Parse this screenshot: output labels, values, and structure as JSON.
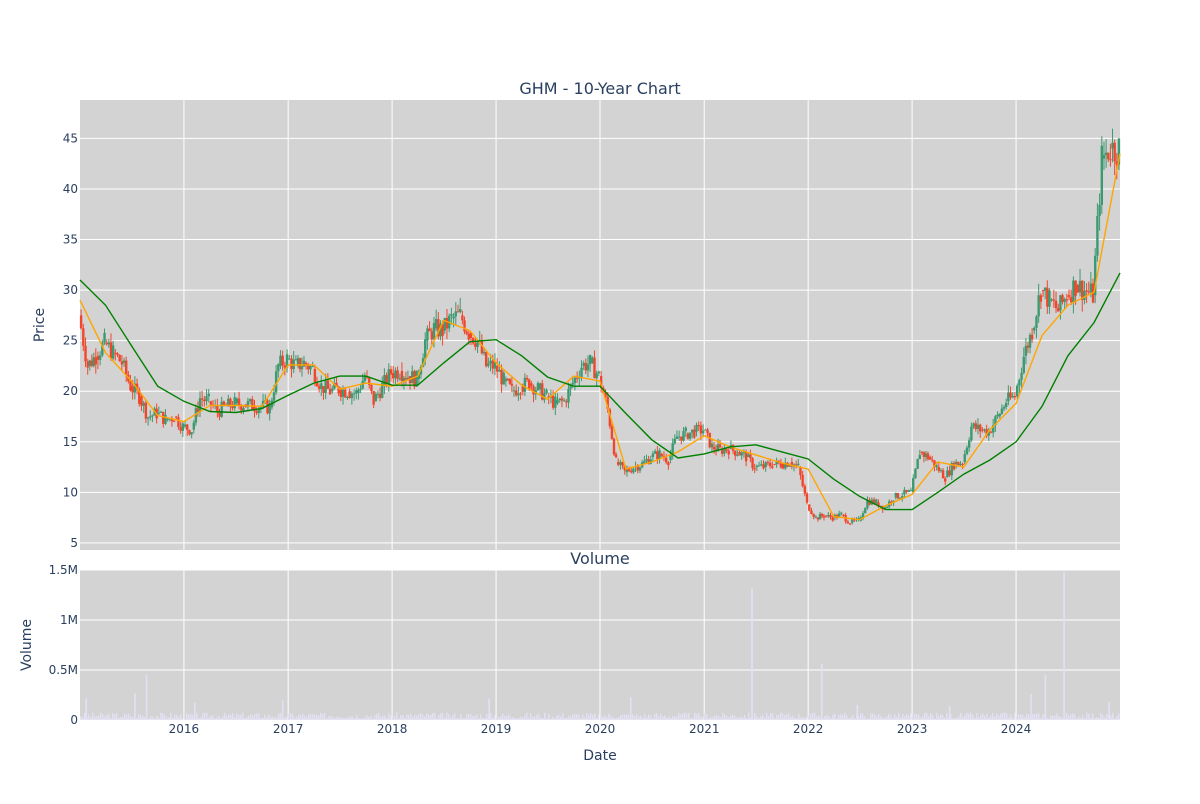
{
  "chart_data": [
    {
      "type": "candlestick",
      "title": "GHM - 10-Year Chart",
      "ylabel": "Price",
      "ylim": [
        4.3,
        48.8
      ],
      "yticks": [
        5,
        10,
        15,
        20,
        25,
        30,
        35,
        40,
        45
      ],
      "grid": true,
      "legend": "none",
      "colors": {
        "up": "#3d9970",
        "down": "#f1462c",
        "ma_short": "#ffa500",
        "ma_long": "#008000",
        "background": "#d3d3d3",
        "grid": "#ffffff"
      },
      "series": [
        {
          "kind": "ohlc-close-trace",
          "x": [
            "2015-01-01",
            "2015-02-01",
            "2015-03-01",
            "2015-04-01",
            "2015-05-01",
            "2015-06-01",
            "2015-07-01",
            "2015-08-01",
            "2015-09-01",
            "2015-10-01",
            "2015-11-01",
            "2015-12-01",
            "2016-01-01",
            "2016-02-01",
            "2016-03-01",
            "2016-04-01",
            "2016-05-01",
            "2016-06-01",
            "2016-07-01",
            "2016-08-01",
            "2016-09-01",
            "2016-10-01",
            "2016-11-01",
            "2016-12-01",
            "2017-01-01",
            "2017-02-01",
            "2017-03-01",
            "2017-04-01",
            "2017-05-01",
            "2017-06-01",
            "2017-07-01",
            "2017-08-01",
            "2017-09-01",
            "2017-10-01",
            "2017-11-01",
            "2017-12-01",
            "2018-01-01",
            "2018-02-01",
            "2018-03-01",
            "2018-04-01",
            "2018-05-01",
            "2018-06-01",
            "2018-07-01",
            "2018-08-01",
            "2018-09-01",
            "2018-10-01",
            "2018-11-01",
            "2018-12-01",
            "2019-01-01",
            "2019-02-01",
            "2019-03-01",
            "2019-04-01",
            "2019-05-01",
            "2019-06-01",
            "2019-07-01",
            "2019-08-01",
            "2019-09-01",
            "2019-10-01",
            "2019-11-01",
            "2019-12-01",
            "2020-01-01",
            "2020-02-01",
            "2020-03-01",
            "2020-04-01",
            "2020-05-01",
            "2020-06-01",
            "2020-07-01",
            "2020-08-01",
            "2020-09-01",
            "2020-10-01",
            "2020-11-01",
            "2020-12-01",
            "2021-01-01",
            "2021-02-01",
            "2021-03-01",
            "2021-04-01",
            "2021-05-01",
            "2021-06-01",
            "2021-07-01",
            "2021-08-01",
            "2021-09-01",
            "2021-10-01",
            "2021-11-01",
            "2021-12-01",
            "2022-01-01",
            "2022-02-01",
            "2022-03-01",
            "2022-04-01",
            "2022-05-01",
            "2022-06-01",
            "2022-07-01",
            "2022-08-01",
            "2022-09-01",
            "2022-10-01",
            "2022-11-01",
            "2022-12-01",
            "2023-01-01",
            "2023-02-01",
            "2023-03-01",
            "2023-04-01",
            "2023-05-01",
            "2023-06-01",
            "2023-07-01",
            "2023-08-01",
            "2023-09-01",
            "2023-10-01",
            "2023-11-01",
            "2023-12-01",
            "2024-01-01",
            "2024-02-01",
            "2024-03-01",
            "2024-04-01",
            "2024-05-01",
            "2024-06-01",
            "2024-07-01",
            "2024-08-01",
            "2024-09-01",
            "2024-10-01",
            "2024-11-01",
            "2024-12-01"
          ],
          "close": [
            27.5,
            22.5,
            23.5,
            24.8,
            23.8,
            22.8,
            20.5,
            19.5,
            17.5,
            17.8,
            17.2,
            17.5,
            16.5,
            16.2,
            19.3,
            19.0,
            18.0,
            18.5,
            18.8,
            18.7,
            18.6,
            18.5,
            18.4,
            22.5,
            23.2,
            22.5,
            22.8,
            22.2,
            20.5,
            20.0,
            20.2,
            20.0,
            19.8,
            21.5,
            19.0,
            20.5,
            21.8,
            22.0,
            21.5,
            21.2,
            25.0,
            26.2,
            26.0,
            27.2,
            27.5,
            25.8,
            25.0,
            22.5,
            22.5,
            21.0,
            20.0,
            20.5,
            20.8,
            20.2,
            19.5,
            18.8,
            19.0,
            20.8,
            22.5,
            22.8,
            21.5,
            18.2,
            13.0,
            12.0,
            12.5,
            12.8,
            13.5,
            13.8,
            13.2,
            15.5,
            15.8,
            16.0,
            16.2,
            14.5,
            14.2,
            14.3,
            14.0,
            13.5,
            12.5,
            12.5,
            12.8,
            12.8,
            13.0,
            12.5,
            8.8,
            7.5,
            7.7,
            7.5,
            7.8,
            7.0,
            7.2,
            9.2,
            9.0,
            8.5,
            9.5,
            9.8,
            10.0,
            14.0,
            13.5,
            12.5,
            11.5,
            12.8,
            13.0,
            16.5,
            16.2,
            16.0,
            17.5,
            19.0,
            19.5,
            23.5,
            26.0,
            30.0,
            29.0,
            28.0,
            29.5,
            30.5,
            30.0,
            29.5,
            43.0,
            44.0
          ]
        },
        {
          "kind": "moving-average",
          "role": "short",
          "x": [
            "2015-01-01",
            "2015-04-01",
            "2015-07-01",
            "2015-10-01",
            "2016-01-01",
            "2016-04-01",
            "2016-07-01",
            "2016-10-01",
            "2017-01-01",
            "2017-04-01",
            "2017-07-01",
            "2017-10-01",
            "2018-01-01",
            "2018-04-01",
            "2018-07-01",
            "2018-10-01",
            "2019-01-01",
            "2019-04-01",
            "2019-07-01",
            "2019-10-01",
            "2020-01-01",
            "2020-04-01",
            "2020-07-01",
            "2020-10-01",
            "2021-01-01",
            "2021-04-01",
            "2021-07-01",
            "2021-10-01",
            "2022-01-01",
            "2022-04-01",
            "2022-07-01",
            "2022-10-01",
            "2023-01-01",
            "2023-04-01",
            "2023-07-01",
            "2023-10-01",
            "2024-01-01",
            "2024-04-01",
            "2024-07-01",
            "2024-10-01",
            "2024-12-31"
          ],
          "values": [
            29.0,
            23.8,
            21.0,
            17.6,
            17.0,
            18.6,
            18.6,
            18.5,
            22.6,
            22.6,
            20.2,
            20.8,
            20.5,
            21.5,
            27.0,
            26.0,
            22.8,
            20.6,
            19.2,
            21.5,
            21.0,
            12.3,
            13.0,
            14.0,
            15.6,
            14.5,
            13.7,
            12.9,
            12.3,
            7.6,
            7.3,
            8.7,
            9.8,
            13.0,
            12.5,
            16.2,
            18.8,
            25.5,
            28.5,
            29.8,
            43.5
          ]
        },
        {
          "kind": "moving-average",
          "role": "long",
          "x": [
            "2015-01-01",
            "2015-04-01",
            "2015-07-01",
            "2015-10-01",
            "2016-01-01",
            "2016-04-01",
            "2016-07-01",
            "2016-10-01",
            "2017-01-01",
            "2017-04-01",
            "2017-07-01",
            "2017-10-01",
            "2018-01-01",
            "2018-04-01",
            "2018-07-01",
            "2018-10-01",
            "2019-01-01",
            "2019-04-01",
            "2019-07-01",
            "2019-10-01",
            "2020-01-01",
            "2020-04-01",
            "2020-07-01",
            "2020-10-01",
            "2021-01-01",
            "2021-04-01",
            "2021-07-01",
            "2021-10-01",
            "2022-01-01",
            "2022-04-01",
            "2022-07-01",
            "2022-10-01",
            "2023-01-01",
            "2023-04-01",
            "2023-07-01",
            "2023-10-01",
            "2024-01-01",
            "2024-04-01",
            "2024-07-01",
            "2024-10-01",
            "2024-12-31"
          ],
          "values": [
            31.0,
            28.5,
            24.5,
            20.5,
            19.0,
            18.0,
            17.9,
            18.3,
            19.6,
            20.8,
            21.5,
            21.5,
            20.6,
            20.6,
            22.8,
            24.9,
            25.1,
            23.5,
            21.4,
            20.5,
            20.5,
            17.8,
            15.2,
            13.4,
            13.8,
            14.5,
            14.7,
            14.0,
            13.3,
            11.3,
            9.6,
            8.3,
            8.3,
            10.0,
            11.8,
            13.2,
            15.0,
            18.5,
            23.5,
            26.8,
            31.7
          ]
        }
      ]
    },
    {
      "type": "bar",
      "title": "Volume",
      "xlabel": "Date",
      "ylabel": "Volume",
      "ylim": [
        0,
        1.5
      ],
      "unit": "M",
      "yticks": [
        0,
        0.5,
        1,
        1.5
      ],
      "ytick_labels": [
        "0",
        "0.5M",
        "1M",
        "1.5M"
      ],
      "xticks": [
        "2016",
        "2017",
        "2018",
        "2019",
        "2020",
        "2021",
        "2022",
        "2023",
        "2024"
      ],
      "color": "#e3e0f4",
      "spikes": [
        {
          "x": "2015-01-20",
          "value": 0.22
        },
        {
          "x": "2015-07-10",
          "value": 0.27
        },
        {
          "x": "2015-08-20",
          "value": 0.45
        },
        {
          "x": "2016-02-05",
          "value": 0.17
        },
        {
          "x": "2016-12-10",
          "value": 0.2
        },
        {
          "x": "2018-12-05",
          "value": 0.21
        },
        {
          "x": "2020-04-15",
          "value": 0.23
        },
        {
          "x": "2021-06-15",
          "value": 1.32
        },
        {
          "x": "2022-02-15",
          "value": 0.56
        },
        {
          "x": "2022-06-20",
          "value": 0.15
        },
        {
          "x": "2023-05-10",
          "value": 0.14
        },
        {
          "x": "2024-02-20",
          "value": 0.26
        },
        {
          "x": "2024-04-10",
          "value": 0.45
        },
        {
          "x": "2024-06-15",
          "value": 1.48
        },
        {
          "x": "2024-11-20",
          "value": 0.18
        }
      ],
      "baseline_volume": 0.05
    }
  ]
}
